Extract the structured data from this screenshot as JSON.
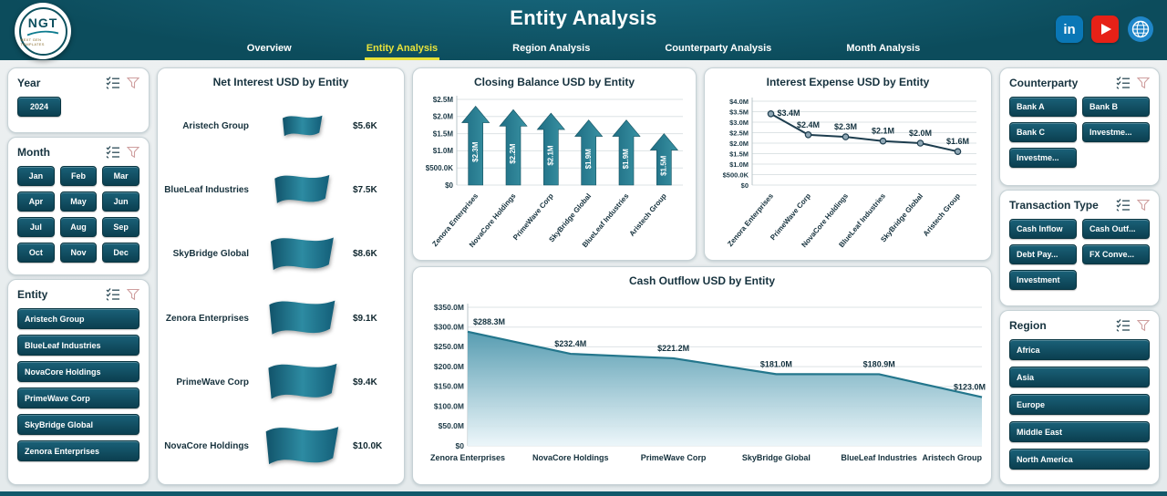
{
  "header": {
    "title": "Entity Analysis",
    "logo": {
      "text": "NGT",
      "subtext": "NEXT GEN TEMPLATES"
    },
    "nav": [
      {
        "label": "Overview",
        "active": false
      },
      {
        "label": "Entity Analysis",
        "active": true
      },
      {
        "label": "Region Analysis",
        "active": false
      },
      {
        "label": "Counterparty Analysis",
        "active": false
      },
      {
        "label": "Month Analysis",
        "active": false
      }
    ],
    "social": {
      "linkedin_label": "in"
    }
  },
  "colors": {
    "header_bg": "#0c4c5c",
    "accent_yellow": "#e8e23a",
    "button_dark": "#0b3f50",
    "chart_teal": "#2a7f95",
    "line_dark": "#1d3d4e",
    "area_fill_top": "#4e97ad",
    "area_fill_bottom": "#eaf5f9",
    "linkedin": "#0a77b6",
    "youtube": "#e62117",
    "web": "#1f86c9"
  },
  "filters": {
    "year": {
      "title": "Year",
      "items": [
        "2024"
      ]
    },
    "month": {
      "title": "Month",
      "items": [
        "Jan",
        "Feb",
        "Mar",
        "Apr",
        "May",
        "Jun",
        "Jul",
        "Aug",
        "Sep",
        "Oct",
        "Nov",
        "Dec"
      ]
    },
    "entity": {
      "title": "Entity",
      "items": [
        "Aristech Group",
        "BlueLeaf Industries",
        "NovaCore Holdings",
        "PrimeWave Corp",
        "SkyBridge Global",
        "Zenora Enterprises"
      ]
    },
    "counterparty": {
      "title": "Counterparty",
      "items": [
        "Bank A",
        "Bank B",
        "Bank C",
        "Investme...",
        "Investme..."
      ]
    },
    "transaction_type": {
      "title": "Transaction Type",
      "items": [
        "Cash Inflow",
        "Cash Outf...",
        "Debt Pay...",
        "FX Conve...",
        "Investment"
      ]
    },
    "region": {
      "title": "Region",
      "items": [
        "Africa",
        "Asia",
        "Europe",
        "Middle East",
        "North America"
      ]
    }
  },
  "chart_data": [
    {
      "type": "bar",
      "variant": "flag-pictogram",
      "title": "Net Interest USD by Entity",
      "categories": [
        "Aristech Group",
        "BlueLeaf Industries",
        "SkyBridge Global",
        "Zenora Enterprises",
        "PrimeWave Corp",
        "NovaCore Holdings"
      ],
      "values": [
        5.6,
        7.5,
        8.6,
        9.1,
        9.4,
        10.0
      ],
      "labels": [
        "$5.6K",
        "$7.5K",
        "$8.6K",
        "$9.1K",
        "$9.4K",
        "$10.0K"
      ],
      "xlabel": "",
      "ylabel": "Net Interest USD",
      "legend": false
    },
    {
      "type": "bar",
      "variant": "arrow",
      "title": "Closing Balance USD by Entity",
      "categories": [
        "Zenora Enterprises",
        "NovaCore Holdings",
        "PrimeWave Corp",
        "SkyBridge Global",
        "BlueLeaf Industries",
        "Aristech Group"
      ],
      "values": [
        2.3,
        2.2,
        2.1,
        1.9,
        1.9,
        1.5
      ],
      "labels": [
        "$2.3M",
        "$2.2M",
        "$2.1M",
        "$1.9M",
        "$1.9M",
        "$1.5M"
      ],
      "ylim": [
        0,
        2.5
      ],
      "yticks": [
        "$0",
        "$500.0K",
        "$1.0M",
        "$1.5M",
        "$2.0M",
        "$2.5M"
      ],
      "grid": true,
      "legend": false
    },
    {
      "type": "line",
      "title": "Interest Expense USD by Entity",
      "categories": [
        "Zenora Enterprises",
        "PrimeWave Corp",
        "NovaCore Holdings",
        "BlueLeaf Industries",
        "SkyBridge Global",
        "Aristech Group"
      ],
      "values": [
        3.4,
        2.4,
        2.3,
        2.1,
        2.0,
        1.6
      ],
      "labels": [
        "$3.4M",
        "$2.4M",
        "$2.3M",
        "$2.1M",
        "$2.0M",
        "$1.6M"
      ],
      "ylim": [
        0,
        4.0
      ],
      "yticks": [
        "$0",
        "$500.0K",
        "$1.0M",
        "$1.5M",
        "$2.0M",
        "$2.5M",
        "$3.0M",
        "$3.5M",
        "$4.0M"
      ],
      "grid": true,
      "legend": false
    },
    {
      "type": "area",
      "title": "Cash Outflow USD by Entity",
      "categories": [
        "Zenora Enterprises",
        "NovaCore Holdings",
        "PrimeWave Corp",
        "SkyBridge Global",
        "BlueLeaf Industries",
        "Aristech Group"
      ],
      "values": [
        288.3,
        232.4,
        221.2,
        181.0,
        180.9,
        123.0
      ],
      "labels": [
        "$288.3M",
        "$232.4M",
        "$221.2M",
        "$181.0M",
        "$180.9M",
        "$123.0M"
      ],
      "ylim": [
        0,
        350
      ],
      "yticks": [
        "$0",
        "$50.0M",
        "$100.0M",
        "$150.0M",
        "$200.0M",
        "$250.0M",
        "$300.0M",
        "$350.0M"
      ],
      "grid": true,
      "legend": false
    }
  ]
}
